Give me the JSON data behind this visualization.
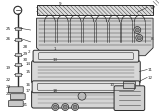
{
  "bg_color": "#ffffff",
  "line_color": "#2a2a2a",
  "light_gray": "#c8c8c8",
  "mid_gray": "#aaaaaa",
  "dark_gray": "#555555"
}
